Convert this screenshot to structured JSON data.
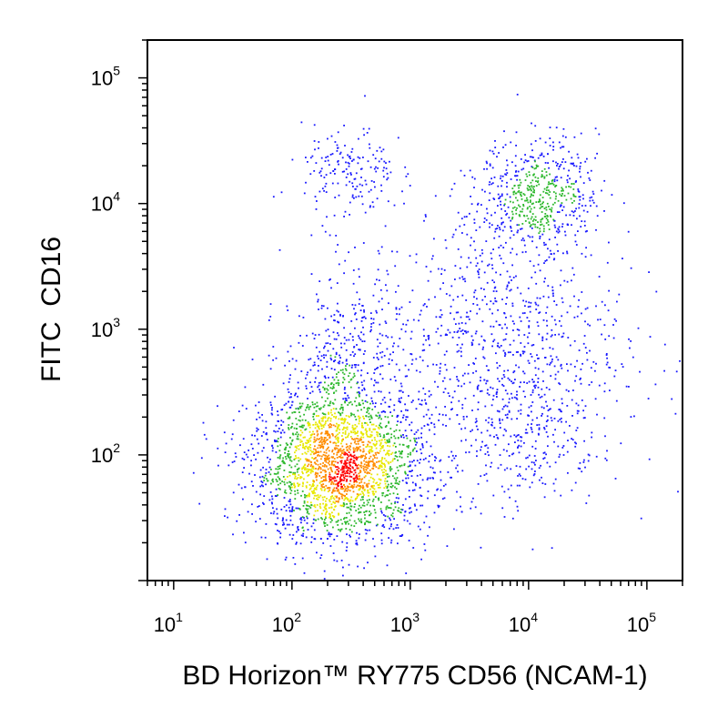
{
  "chart_data": {
    "type": "scatter",
    "subtype": "flow-cytometry-density-dot-plot",
    "xlabel": "BD Horizon™ RY775 CD56 (NCAM-1)",
    "ylabel": "FITC  CD16",
    "x_scale": "log",
    "y_scale": "log",
    "xlim": [
      6,
      200000
    ],
    "ylim": [
      10,
      200000
    ],
    "x_ticks": [
      {
        "value": 10,
        "base": "10",
        "exp": "1"
      },
      {
        "value": 100,
        "base": "10",
        "exp": "2"
      },
      {
        "value": 1000,
        "base": "10",
        "exp": "3"
      },
      {
        "value": 10000,
        "base": "10",
        "exp": "4"
      },
      {
        "value": 100000,
        "base": "10",
        "exp": "5"
      }
    ],
    "y_ticks": [
      {
        "value": 100,
        "base": "10",
        "exp": "2"
      },
      {
        "value": 1000,
        "base": "10",
        "exp": "3"
      },
      {
        "value": 10000,
        "base": "10",
        "exp": "4"
      },
      {
        "value": 100000,
        "base": "10",
        "exp": "5"
      }
    ],
    "grid": false,
    "legend": "none",
    "density_colors": [
      "#1a1aff",
      "#2db82d",
      "#e8e800",
      "#ff8c00",
      "#ff0000"
    ],
    "populations": [
      {
        "center": [
          250,
          80
        ],
        "spread": [
          0.38,
          0.3
        ],
        "count": 2200,
        "weight": "highest"
      },
      {
        "center": [
          260,
          400
        ],
        "spread": [
          0.25,
          0.45
        ],
        "count": 450,
        "weight": "medium"
      },
      {
        "center": [
          12000,
          12000
        ],
        "spread": [
          0.25,
          0.22
        ],
        "count": 550,
        "weight": "medium"
      },
      {
        "center": [
          5000,
          800
        ],
        "spread": [
          0.55,
          0.55
        ],
        "count": 900,
        "weight": "low"
      },
      {
        "center": [
          10000,
          150
        ],
        "spread": [
          0.3,
          0.3
        ],
        "count": 220,
        "weight": "low"
      },
      {
        "center": [
          300,
          18000
        ],
        "spread": [
          0.2,
          0.18
        ],
        "count": 170,
        "weight": "low"
      }
    ]
  }
}
